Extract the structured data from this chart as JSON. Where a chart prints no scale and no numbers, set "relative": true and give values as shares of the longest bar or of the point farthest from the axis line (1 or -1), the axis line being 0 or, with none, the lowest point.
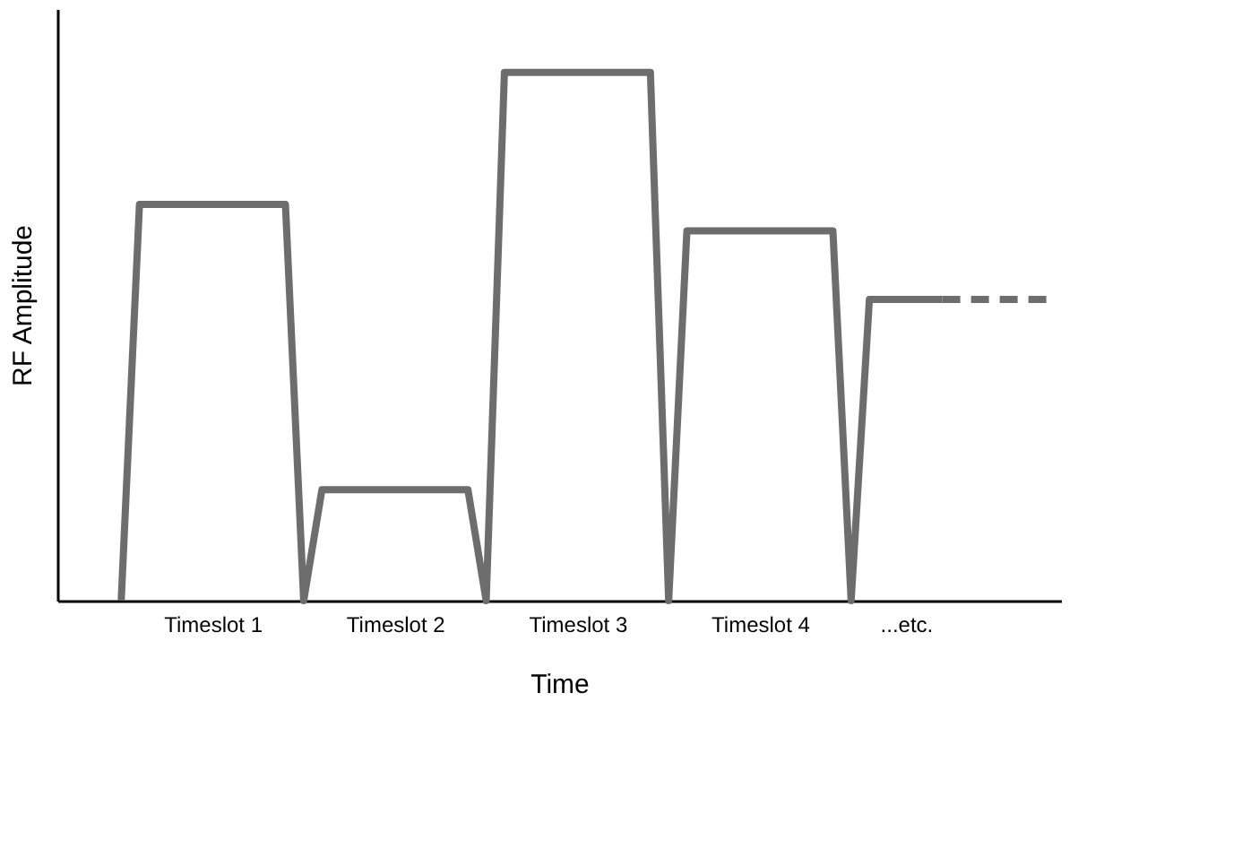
{
  "chart_data": {
    "type": "line",
    "relative": true,
    "xlabel": "Time",
    "ylabel": "RF Amplitude",
    "grid": false,
    "marker": "none",
    "categories": [
      null,
      null,
      null,
      null,
      null,
      null,
      null,
      null,
      "Timeslot 1",
      null,
      null,
      null,
      null,
      null,
      null,
      null,
      null,
      null,
      "Timeslot 2",
      null,
      null,
      null,
      null,
      null,
      null,
      null,
      null,
      null,
      "Timeslot 3",
      null,
      null,
      null,
      null,
      null,
      null,
      null,
      null,
      null,
      "Timeslot 4",
      null,
      null,
      null,
      null,
      null,
      null,
      null,
      "...etc.",
      null,
      null,
      null,
      null,
      null,
      null,
      null,
      null
    ],
    "series": [
      {
        "color": "#6d6d6d",
        "line_style": "solid",
        "values": [
          null,
          null,
          null,
          0,
          0.75,
          0.75,
          0.75,
          0.75,
          0.75,
          0.75,
          0.75,
          0.75,
          0.75,
          0,
          0.21,
          0.21,
          0.21,
          0.21,
          0.21,
          0.21,
          0.21,
          0.21,
          0.21,
          0,
          1,
          1,
          1,
          1,
          1,
          1,
          1,
          1,
          1,
          0,
          0.7,
          0.7,
          0.7,
          0.7,
          0.7,
          0.7,
          0.7,
          0.7,
          0.7,
          0,
          0.57,
          0.57,
          0.57,
          0.57,
          0.57,
          null,
          null,
          null,
          null,
          null,
          null
        ]
      },
      {
        "color": "#6d6d6d",
        "line_style": "dashed",
        "values": [
          null,
          null,
          null,
          null,
          null,
          null,
          null,
          null,
          null,
          null,
          null,
          null,
          null,
          null,
          null,
          null,
          null,
          null,
          null,
          null,
          null,
          null,
          null,
          null,
          null,
          null,
          null,
          null,
          null,
          null,
          null,
          null,
          null,
          null,
          null,
          null,
          null,
          null,
          null,
          null,
          null,
          null,
          null,
          null,
          null,
          null,
          null,
          null,
          0.57,
          0.57,
          0.57,
          0.57,
          0.57,
          0.57,
          0.57
        ]
      }
    ]
  }
}
